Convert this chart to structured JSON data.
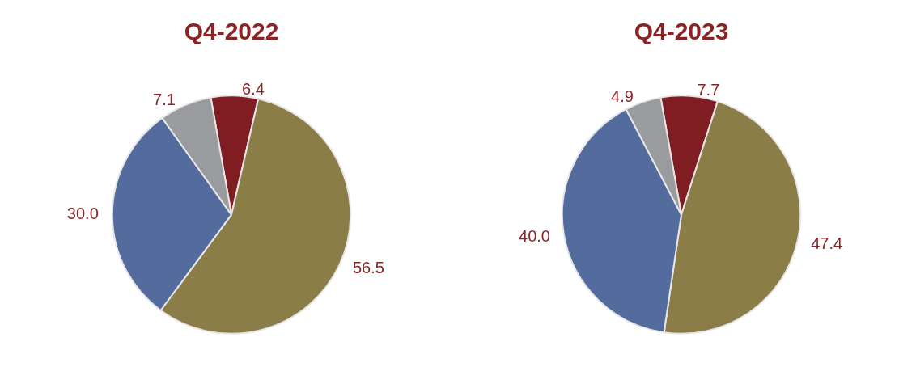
{
  "chart_data": [
    {
      "type": "pie",
      "title": "Q4-2022",
      "categories": [
        null,
        null,
        null,
        null
      ],
      "values": [
        6.4,
        56.5,
        30.0,
        7.1
      ],
      "value_labels": [
        "6.4",
        "56.5",
        "30.0",
        "7.1"
      ],
      "colors": [
        "#7f1d22",
        "#8b7d48",
        "#546b9e",
        "#9a9b9f"
      ]
    },
    {
      "type": "pie",
      "title": "Q4-2023",
      "categories": [
        null,
        null,
        null,
        null
      ],
      "values": [
        7.7,
        47.4,
        40.0,
        4.9
      ],
      "value_labels": [
        "7.7",
        "47.4",
        "40.0",
        "4.9"
      ],
      "colors": [
        "#7f1d22",
        "#8b7d48",
        "#546b9e",
        "#9a9b9f"
      ]
    }
  ]
}
